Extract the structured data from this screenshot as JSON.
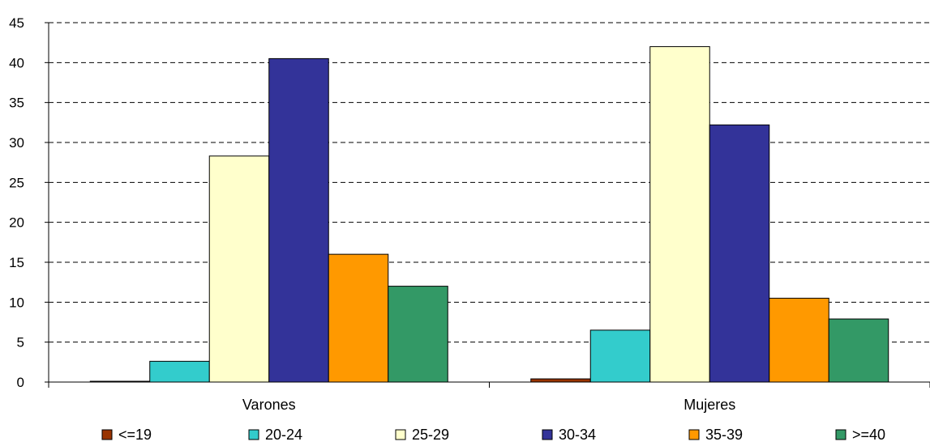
{
  "chart_data": {
    "type": "bar",
    "title": "",
    "xlabel": "",
    "ylabel": "",
    "categories": [
      "Varones",
      "Mujeres"
    ],
    "series": [
      {
        "name": "<=19",
        "color": "#993300",
        "values": [
          0.1,
          0.4
        ]
      },
      {
        "name": "20-24",
        "color": "#33CCCC",
        "values": [
          2.6,
          6.5
        ]
      },
      {
        "name": "25-29",
        "color": "#FFFFCC",
        "values": [
          28.3,
          42.0
        ]
      },
      {
        "name": "30-34",
        "color": "#333399",
        "values": [
          40.5,
          32.2
        ]
      },
      {
        "name": "35-39",
        "color": "#FF9900",
        "values": [
          16.0,
          10.5
        ]
      },
      {
        "name": ">=40",
        "color": "#339966",
        "values": [
          12.0,
          7.9
        ]
      }
    ],
    "ylim": [
      0,
      45
    ],
    "yticks": [
      0,
      5,
      10,
      15,
      20,
      25,
      30,
      35,
      40,
      45
    ],
    "grid": true,
    "grid_style": "dashed",
    "legend_position": "bottom"
  }
}
